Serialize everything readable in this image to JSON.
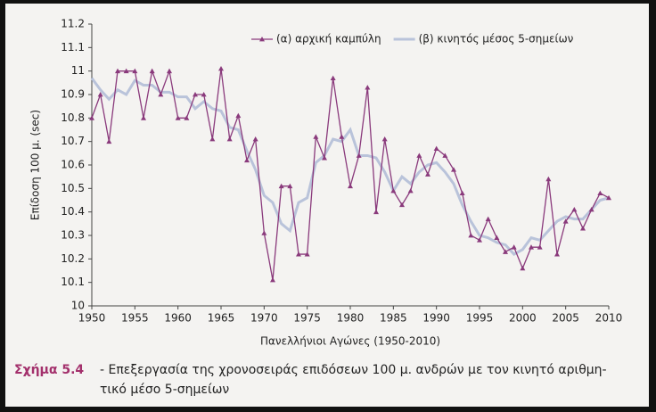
{
  "chart_data": {
    "type": "line",
    "y_label": "Επίδοση 100 μ. (sec)",
    "x_label": "Πανελλήνιοι Αγώνες (1950-2010)",
    "x": [
      1950,
      1951,
      1952,
      1953,
      1954,
      1955,
      1956,
      1957,
      1958,
      1959,
      1960,
      1961,
      1962,
      1963,
      1964,
      1965,
      1966,
      1967,
      1968,
      1969,
      1970,
      1971,
      1972,
      1973,
      1974,
      1975,
      1976,
      1977,
      1978,
      1979,
      1980,
      1981,
      1982,
      1983,
      1984,
      1985,
      1986,
      1987,
      1988,
      1989,
      1990,
      1991,
      1992,
      1993,
      1994,
      1995,
      1996,
      1997,
      1998,
      1999,
      2000,
      2001,
      2002,
      2003,
      2004,
      2005,
      2006,
      2007,
      2008,
      2009,
      2010
    ],
    "series": [
      {
        "name": "(α) αρχική καμπύλη",
        "color": "#8a3a7c",
        "marker": "triangle",
        "values": [
          10.8,
          10.9,
          10.7,
          11.0,
          11.0,
          11.0,
          10.8,
          11.0,
          10.9,
          11.0,
          10.8,
          10.8,
          10.9,
          10.9,
          10.71,
          11.01,
          10.71,
          10.81,
          10.62,
          10.71,
          10.31,
          10.11,
          10.51,
          10.51,
          10.22,
          10.22,
          10.72,
          10.63,
          10.97,
          10.72,
          10.51,
          10.64,
          10.93,
          10.4,
          10.71,
          10.49,
          10.43,
          10.49,
          10.64,
          10.56,
          10.67,
          10.64,
          10.58,
          10.48,
          10.3,
          10.28,
          10.37,
          10.29,
          10.23,
          10.25,
          10.16,
          10.25,
          10.25,
          10.54,
          10.22,
          10.36,
          10.41,
          10.33,
          10.41,
          10.48,
          10.46
        ]
      },
      {
        "name": "(β) κινητός μέσος 5-σημείων",
        "color": "#b9c3da",
        "marker": "none",
        "values": [
          10.97,
          10.92,
          10.88,
          10.92,
          10.9,
          10.96,
          10.94,
          10.94,
          10.91,
          10.91,
          10.89,
          10.89,
          10.84,
          10.87,
          10.84,
          10.83,
          10.76,
          10.75,
          10.66,
          10.58,
          10.47,
          10.44,
          10.35,
          10.32,
          10.44,
          10.46,
          10.61,
          10.64,
          10.71,
          10.7,
          10.75,
          10.64,
          10.64,
          10.63,
          10.57,
          10.49,
          10.55,
          10.52,
          10.57,
          10.6,
          10.61,
          10.57,
          10.52,
          10.43,
          10.36,
          10.3,
          10.29,
          10.27,
          10.26,
          10.22,
          10.24,
          10.29,
          10.28,
          10.32,
          10.36,
          10.38,
          10.37,
          10.37,
          10.41,
          10.45,
          10.46
        ]
      }
    ],
    "xlim": [
      1950,
      2010
    ],
    "xticks": [
      1950,
      1955,
      1960,
      1965,
      1970,
      1975,
      1980,
      1985,
      1990,
      1995,
      2000,
      2005,
      2010
    ],
    "ylim": [
      10,
      11.2
    ],
    "yticks": [
      10,
      10.1,
      10.2,
      10.3,
      10.4,
      10.5,
      10.6,
      10.7,
      10.8,
      10.9,
      11,
      11.1,
      11.2
    ],
    "legend": "top-right",
    "grid": false
  },
  "caption": {
    "label": "Σχήμα 5.4",
    "lines": [
      "- Επεξεργασία της χρονοσειράς επιδόσεων 100 μ. ανδρών με τον κινητό αριθμη-",
      "τικό μέσο 5-σημείων"
    ]
  }
}
